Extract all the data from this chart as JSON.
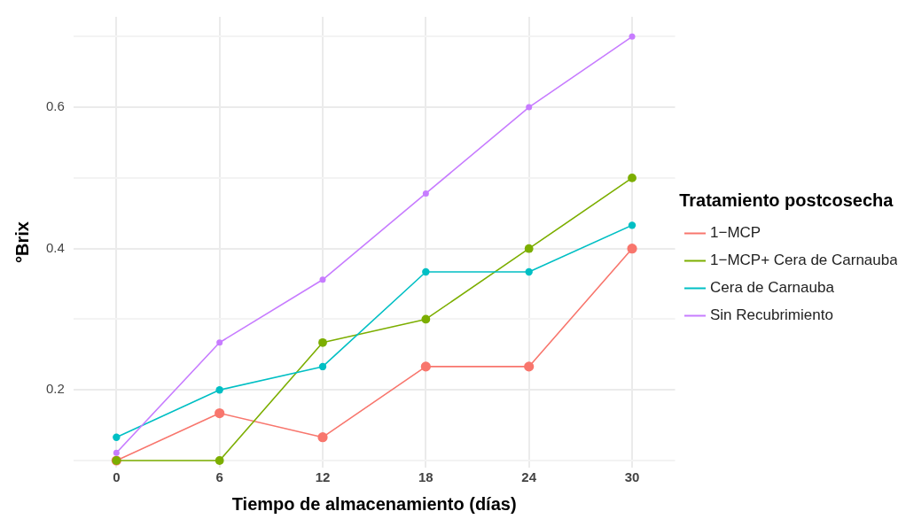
{
  "chart_data": {
    "type": "line",
    "xlabel": "Tiempo de almacenamiento (días)",
    "ylabel": "°Brix",
    "legend_title": "Tratamiento postcosecha",
    "x": [
      0,
      6,
      12,
      18,
      24,
      30
    ],
    "series": [
      {
        "name": "1−MCP",
        "color": "#f8766d",
        "values": [
          0.1,
          0.167,
          0.133,
          0.233,
          0.233,
          0.4
        ]
      },
      {
        "name": "1−MCP+ Cera de Carnauba",
        "color": "#7cae00",
        "values": [
          0.1,
          0.1,
          0.267,
          0.3,
          0.4,
          0.5
        ]
      },
      {
        "name": "Cera de Carnauba",
        "color": "#00bfc4",
        "values": [
          0.133,
          0.2,
          0.233,
          0.367,
          0.367,
          0.433
        ]
      },
      {
        "name": "Sin Recubrimiento",
        "color": "#c77cff",
        "values": [
          0.111,
          0.267,
          0.356,
          0.478,
          0.6,
          0.7
        ]
      }
    ],
    "xlim": [
      -2.5,
      32.5
    ],
    "xticks": [
      0,
      6,
      12,
      18,
      24,
      30
    ],
    "ylim": [
      0.09,
      0.728
    ],
    "yticks": [
      {
        "value": 0.1,
        "label": null
      },
      0.2,
      {
        "value": 0.3,
        "label": null
      },
      0.4,
      {
        "value": 0.5,
        "label": null
      },
      0.6,
      {
        "value": 0.7,
        "label": null
      }
    ],
    "grid": true,
    "legend": "right",
    "marker": "circle",
    "line_style": "solid"
  }
}
